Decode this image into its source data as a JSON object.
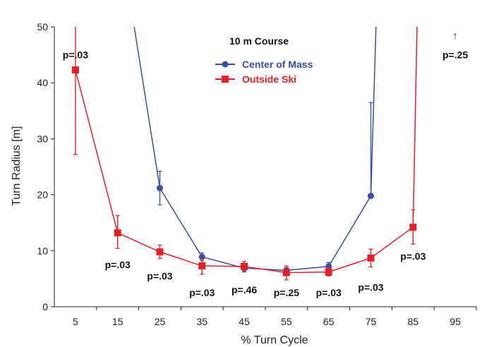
{
  "chart_data": {
    "type": "line",
    "title": "10 m Course",
    "xlabel": "% Turn Cycle",
    "ylabel": "Turn Radius [m]",
    "xlim": [
      0,
      100
    ],
    "ylim": [
      0,
      50
    ],
    "x_ticks": [
      "5",
      "15",
      "25",
      "35",
      "45",
      "55",
      "65",
      "75",
      "85",
      "95"
    ],
    "y_ticks": [
      "0",
      "10",
      "20",
      "30",
      "40",
      "50"
    ],
    "grid": false,
    "legend_position": "top-center",
    "series": [
      {
        "name": "Center of Mass",
        "color": "#3a4fa8",
        "marker": "circle",
        "points": [
          {
            "x": 18.5,
            "y": 52,
            "err_low": null,
            "err_high": null
          },
          {
            "x": 25,
            "y": 21.2,
            "err_low": 18.2,
            "err_high": 24.2
          },
          {
            "x": 35,
            "y": 8.9,
            "err_low": 8.2,
            "err_high": 9.6
          },
          {
            "x": 45,
            "y": 6.9,
            "err_low": 6.2,
            "err_high": 7.6
          },
          {
            "x": 55,
            "y": 6.5,
            "err_low": 5.8,
            "err_high": 7.3
          },
          {
            "x": 65,
            "y": 7.2,
            "err_low": 6.5,
            "err_high": 7.9
          },
          {
            "x": 75,
            "y": 19.8,
            "err_low": 19.8,
            "err_high": 36.5
          },
          {
            "x": 76.3,
            "y": 52,
            "err_low": null,
            "err_high": null
          }
        ]
      },
      {
        "name": "Outside Ski",
        "color": "#e3202a",
        "marker": "square",
        "points": [
          {
            "x": 5,
            "y": 42.3,
            "err_low": 27.2,
            "err_high": 52
          },
          {
            "x": 15,
            "y": 13.2,
            "err_low": 10.4,
            "err_high": 16.3
          },
          {
            "x": 25,
            "y": 9.8,
            "err_low": 8.6,
            "err_high": 11.0
          },
          {
            "x": 35,
            "y": 7.3,
            "err_low": 5.8,
            "err_high": 8.6
          },
          {
            "x": 45,
            "y": 7.2,
            "err_low": 6.3,
            "err_high": 8.1
          },
          {
            "x": 55,
            "y": 6.1,
            "err_low": 4.8,
            "err_high": 7.0
          },
          {
            "x": 65,
            "y": 6.2,
            "err_low": 5.5,
            "err_high": 6.9
          },
          {
            "x": 75,
            "y": 8.7,
            "err_low": 7.1,
            "err_high": 10.3
          },
          {
            "x": 85,
            "y": 14.2,
            "err_low": 11.2,
            "err_high": 17.3
          },
          {
            "x": 86,
            "y": 52,
            "err_low": null,
            "err_high": null
          }
        ]
      }
    ],
    "annotations": [
      {
        "text": "p=.03",
        "x": 5,
        "y": 45
      },
      {
        "text": "p=.03",
        "x": 15,
        "y": 7.5
      },
      {
        "text": "p=.03",
        "x": 25,
        "y": 5.5
      },
      {
        "text": "p=.03",
        "x": 35,
        "y": 2.5
      },
      {
        "text": "p=.46",
        "x": 45,
        "y": 3.0
      },
      {
        "text": "p=.25",
        "x": 55,
        "y": 2.5
      },
      {
        "text": "p=.03",
        "x": 65,
        "y": 2.5
      },
      {
        "text": "p=.03",
        "x": 75,
        "y": 3.5
      },
      {
        "text": "p=.03",
        "x": 85,
        "y": 9.0
      },
      {
        "text": "p=.25",
        "x": 95,
        "y": 45
      },
      {
        "text": "↑",
        "x": 95,
        "y": 48.5
      }
    ]
  }
}
